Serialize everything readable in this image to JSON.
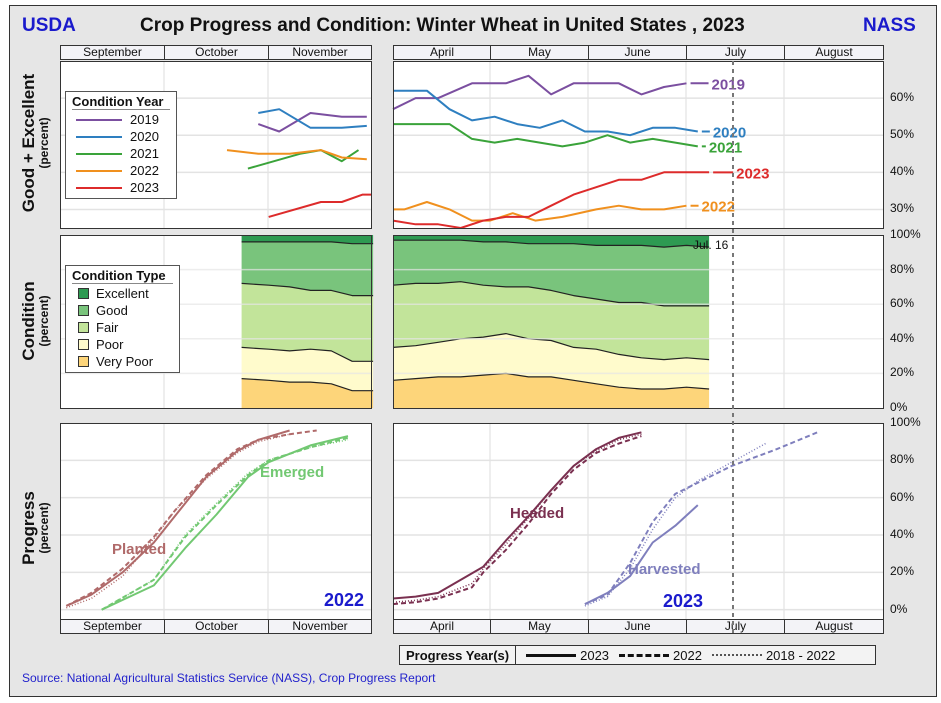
{
  "header": {
    "left_logo": "USDA",
    "right_logo": "NASS",
    "title": "Crop Progress and Condition: Winter Wheat in United States , 2023"
  },
  "months_left": [
    "September",
    "October",
    "November"
  ],
  "months_right": [
    "April",
    "May",
    "June",
    "July",
    "August"
  ],
  "footer": {
    "source": "Source: National Agricultural Statistics Service (NASS), Crop Progress Report"
  },
  "progress_legend": {
    "title": "Progress Year(s)",
    "items": [
      {
        "label": "2023",
        "style": "solid"
      },
      {
        "label": "2022",
        "style": "dashed"
      },
      {
        "label": "2018 - 2022",
        "style": "dotted"
      }
    ]
  },
  "colors": {
    "2019": "#7b4fa0",
    "2020": "#2e7fc0",
    "2021": "#3aa33a",
    "2022": "#f0901e",
    "2023": "#dd2b2b",
    "excellent": "#2e9a52",
    "good": "#79c47c",
    "fair": "#c2e49a",
    "poor": "#fffbcc",
    "very_poor": "#fdd57a",
    "planted": "#b06a6a",
    "emerged": "#72c872",
    "headed": "#7a3050",
    "harvested": "#7f7fbd",
    "brand_blue": "#1a1acc"
  },
  "chart_data": [
    {
      "type": "line",
      "title": "Good + Excellent",
      "ylabel": "Good + Excellent",
      "ylabel_sub": "(percent)",
      "ylim": [
        25,
        70
      ],
      "yticks": [
        "30%",
        "40%",
        "50%",
        "60%"
      ],
      "ytick_values": [
        30,
        40,
        50,
        60
      ],
      "legend_title": "Condition Year",
      "legend_position": "left",
      "fall_segment_x_domain": "week index Sep-Nov (0..13)",
      "spring_segment_x_domain": "week index Apr-Aug (0..21)",
      "series": [
        {
          "name": "2019",
          "fall": [
            [
              9.5,
              53
            ],
            [
              10.5,
              51
            ],
            [
              12,
              56
            ],
            [
              13.5,
              55
            ],
            [
              14.7,
              55
            ]
          ],
          "spring": [
            [
              0,
              57
            ],
            [
              1,
              60
            ],
            [
              2,
              60
            ],
            [
              3.5,
              64
            ],
            [
              5,
              64
            ],
            [
              6,
              66
            ],
            [
              7,
              61
            ],
            [
              8,
              64
            ],
            [
              10,
              64
            ],
            [
              11,
              61
            ],
            [
              12,
              63
            ],
            [
              13,
              64
            ]
          ]
        },
        {
          "name": "2020",
          "fall": [
            [
              9.5,
              56
            ],
            [
              10.5,
              57
            ],
            [
              12,
              52
            ],
            [
              13.5,
              52
            ],
            [
              14.7,
              52.5
            ]
          ],
          "spring": [
            [
              0,
              62
            ],
            [
              1.5,
              62
            ],
            [
              2.5,
              57
            ],
            [
              3.5,
              54
            ],
            [
              4.5,
              55
            ],
            [
              5.5,
              53
            ],
            [
              6.5,
              52
            ],
            [
              7.5,
              54
            ],
            [
              8.5,
              51
            ],
            [
              9.5,
              51
            ],
            [
              10.5,
              50
            ],
            [
              11.5,
              52
            ],
            [
              12.5,
              52
            ],
            [
              13.5,
              51
            ]
          ]
        },
        {
          "name": "2021",
          "fall": [
            [
              9,
              41
            ],
            [
              11.5,
              45
            ],
            [
              12.5,
              46
            ],
            [
              13.5,
              43
            ],
            [
              14.3,
              46
            ]
          ],
          "spring": [
            [
              0,
              53
            ],
            [
              2.5,
              53
            ],
            [
              3.5,
              49
            ],
            [
              4.5,
              48
            ],
            [
              5.5,
              49
            ],
            [
              6.5,
              48
            ],
            [
              7.5,
              47
            ],
            [
              8.5,
              48
            ],
            [
              9.5,
              50
            ],
            [
              10.5,
              48
            ],
            [
              11.5,
              49
            ],
            [
              13.5,
              47
            ]
          ]
        },
        {
          "name": "2022",
          "fall": [
            [
              8,
              46
            ],
            [
              9.5,
              45
            ],
            [
              11,
              45
            ],
            [
              12.5,
              46
            ],
            [
              13.5,
              44
            ],
            [
              14.7,
              43.5
            ]
          ],
          "spring": [
            [
              0,
              30
            ],
            [
              0.5,
              30
            ],
            [
              1.5,
              32
            ],
            [
              2.5,
              30
            ],
            [
              3.5,
              27
            ],
            [
              4.3,
              27
            ],
            [
              5.3,
              29
            ],
            [
              6.3,
              27
            ],
            [
              7.5,
              28
            ],
            [
              9,
              30
            ],
            [
              10,
              31
            ],
            [
              11,
              30
            ],
            [
              12,
              30
            ],
            [
              13,
              31
            ]
          ]
        },
        {
          "name": "2023",
          "fall": [
            [
              10,
              28
            ],
            [
              12.5,
              32
            ],
            [
              13.5,
              32
            ],
            [
              14.5,
              34
            ],
            [
              14.9,
              34
            ]
          ],
          "spring": [
            [
              0,
              27
            ],
            [
              1,
              26
            ],
            [
              2,
              26
            ],
            [
              3,
              25
            ],
            [
              4,
              27
            ],
            [
              5,
              28
            ],
            [
              6,
              28
            ],
            [
              7,
              31
            ],
            [
              8,
              34
            ],
            [
              9,
              36
            ],
            [
              10,
              38
            ],
            [
              11,
              38
            ],
            [
              12,
              40
            ],
            [
              14,
              40
            ]
          ]
        }
      ],
      "end_labels": [
        "2019",
        "2020",
        "2021",
        "2023",
        "2022"
      ]
    },
    {
      "type": "area",
      "title": "Condition",
      "ylabel": "Condition",
      "ylabel_sub": "(percent)",
      "ylim": [
        0,
        100
      ],
      "yticks": [
        "0%",
        "20%",
        "40%",
        "60%",
        "80%",
        "100%"
      ],
      "ytick_values": [
        0,
        20,
        40,
        60,
        80,
        100
      ],
      "legend_title": "Condition Type",
      "legend_position": "left",
      "categories": [
        "Excellent",
        "Good",
        "Fair",
        "Poor",
        "Very Poor"
      ],
      "annotation": "Jul. 16",
      "fall_cumulative": {
        "x": [
          8.7,
          10,
          11,
          12,
          13,
          14,
          15
        ],
        "very_poor_top": [
          17,
          16,
          15,
          15,
          14,
          10,
          10
        ],
        "poor_top": [
          35,
          34,
          33,
          34,
          33,
          27,
          27
        ],
        "fair_top": [
          72,
          71,
          70,
          68,
          68,
          65,
          65
        ],
        "good_top": [
          96,
          96,
          96,
          96,
          96,
          95,
          95
        ]
      },
      "spring_cumulative": {
        "x": [
          0,
          1,
          2,
          3,
          4,
          5,
          6,
          7,
          8,
          9,
          10,
          11,
          12,
          13,
          14
        ],
        "very_poor_top": [
          16,
          17,
          18,
          18,
          19,
          20,
          18,
          18,
          16,
          14,
          12,
          11,
          11,
          12,
          11
        ],
        "poor_top": [
          35,
          36,
          38,
          40,
          41,
          43,
          40,
          39,
          35,
          34,
          31,
          29,
          28,
          29,
          28
        ],
        "fair_top": [
          71,
          72,
          72,
          73,
          71,
          70,
          70,
          68,
          65,
          63,
          61,
          61,
          59,
          59,
          59
        ],
        "good_top": [
          97,
          97,
          97,
          97,
          96,
          96,
          95,
          95,
          95,
          94,
          94,
          94,
          93,
          94,
          93
        ]
      }
    },
    {
      "type": "line",
      "title": "Progress",
      "ylabel": "Progress",
      "ylabel_sub": "(percent)",
      "ylim": [
        -5,
        100
      ],
      "yticks": [
        "0%",
        "20%",
        "40%",
        "60%",
        "80%",
        "100%"
      ],
      "ytick_values": [
        0,
        20,
        40,
        60,
        80,
        100
      ],
      "left_year_label": "2022",
      "right_year_label": "2023",
      "series_left": [
        {
          "name": "Planted",
          "label": "Planted",
          "solid": [
            [
              0.3,
              2
            ],
            [
              1.5,
              8
            ],
            [
              3,
              20
            ],
            [
              4.5,
              36
            ],
            [
              5.5,
              50
            ],
            [
              7,
              71
            ],
            [
              8.5,
              85
            ],
            [
              9.5,
              91
            ],
            [
              11,
              96
            ]
          ],
          "dashed": [
            [
              0.3,
              2
            ],
            [
              1.5,
              9
            ],
            [
              3,
              22
            ],
            [
              4.5,
              39
            ],
            [
              5.5,
              53
            ],
            [
              7,
              72
            ],
            [
              8.5,
              86
            ],
            [
              9.5,
              91
            ],
            [
              11,
              94
            ],
            [
              12.3,
              96
            ]
          ],
          "dotted": [
            [
              0.3,
              1
            ],
            [
              1.5,
              6
            ],
            [
              3,
              18
            ],
            [
              4.5,
              38
            ],
            [
              5.5,
              53
            ],
            [
              7,
              70
            ],
            [
              8.5,
              84
            ],
            [
              9.5,
              90
            ],
            [
              11,
              94
            ]
          ]
        },
        {
          "name": "Emerged",
          "label": "Emerged",
          "solid": [
            [
              2,
              0
            ],
            [
              4.5,
              13
            ],
            [
              6,
              33
            ],
            [
              7.5,
              51
            ],
            [
              9,
              71
            ],
            [
              10,
              79
            ],
            [
              12,
              88
            ],
            [
              13.8,
              93
            ]
          ],
          "dashed": [
            [
              2,
              0
            ],
            [
              4.5,
              16
            ],
            [
              6,
              39
            ],
            [
              7.5,
              56
            ],
            [
              9,
              72
            ],
            [
              10,
              80
            ],
            [
              12,
              87
            ],
            [
              13.8,
              92
            ]
          ],
          "dotted": [
            [
              2,
              0
            ],
            [
              4.5,
              16
            ],
            [
              6,
              40
            ],
            [
              7.5,
              57
            ],
            [
              9,
              73
            ],
            [
              10,
              80
            ],
            [
              12,
              87
            ],
            [
              13.8,
              91
            ]
          ]
        }
      ],
      "series_right": [
        {
          "name": "Headed",
          "label": "Headed",
          "solid": [
            [
              0,
              6
            ],
            [
              1,
              7
            ],
            [
              2,
              9
            ],
            [
              4,
              23
            ],
            [
              5,
              37
            ],
            [
              6,
              50
            ],
            [
              7,
              64
            ],
            [
              8,
              77
            ],
            [
              9,
              86
            ],
            [
              10,
              92
            ],
            [
              11,
              95
            ]
          ],
          "dashed": [
            [
              0,
              3
            ],
            [
              1,
              4
            ],
            [
              2,
              6
            ],
            [
              3.5,
              12
            ],
            [
              4,
              20
            ],
            [
              5,
              32
            ],
            [
              6,
              46
            ],
            [
              7,
              62
            ],
            [
              8,
              75
            ],
            [
              9,
              84
            ],
            [
              10,
              89
            ],
            [
              11,
              93
            ]
          ],
          "dotted": [
            [
              0,
              4
            ],
            [
              1,
              5
            ],
            [
              2,
              7
            ],
            [
              3.5,
              14
            ],
            [
              4,
              22
            ],
            [
              5,
              35
            ],
            [
              6,
              49
            ],
            [
              7,
              64
            ],
            [
              8,
              77
            ],
            [
              9,
              85
            ],
            [
              10,
              91
            ],
            [
              11,
              94
            ]
          ]
        },
        {
          "name": "Harvested",
          "label": "Harvested",
          "solid": [
            [
              8.5,
              3
            ],
            [
              9.5,
              9
            ],
            [
              10.5,
              18
            ],
            [
              11.5,
              36
            ],
            [
              12.5,
              45
            ],
            [
              13.5,
              56
            ]
          ],
          "dashed": [
            [
              8.5,
              3
            ],
            [
              9.5,
              8
            ],
            [
              10.5,
              25
            ],
            [
              11.5,
              47
            ],
            [
              12.5,
              62
            ],
            [
              13.5,
              68
            ],
            [
              15,
              77
            ],
            [
              17,
              86
            ],
            [
              18.8,
              95
            ]
          ],
          "dotted": [
            [
              8.5,
              2
            ],
            [
              9.5,
              7
            ],
            [
              10.5,
              22
            ],
            [
              11.5,
              43
            ],
            [
              12.5,
              60
            ],
            [
              13.5,
              69
            ],
            [
              15,
              79
            ],
            [
              16.5,
              89
            ]
          ]
        }
      ]
    }
  ]
}
